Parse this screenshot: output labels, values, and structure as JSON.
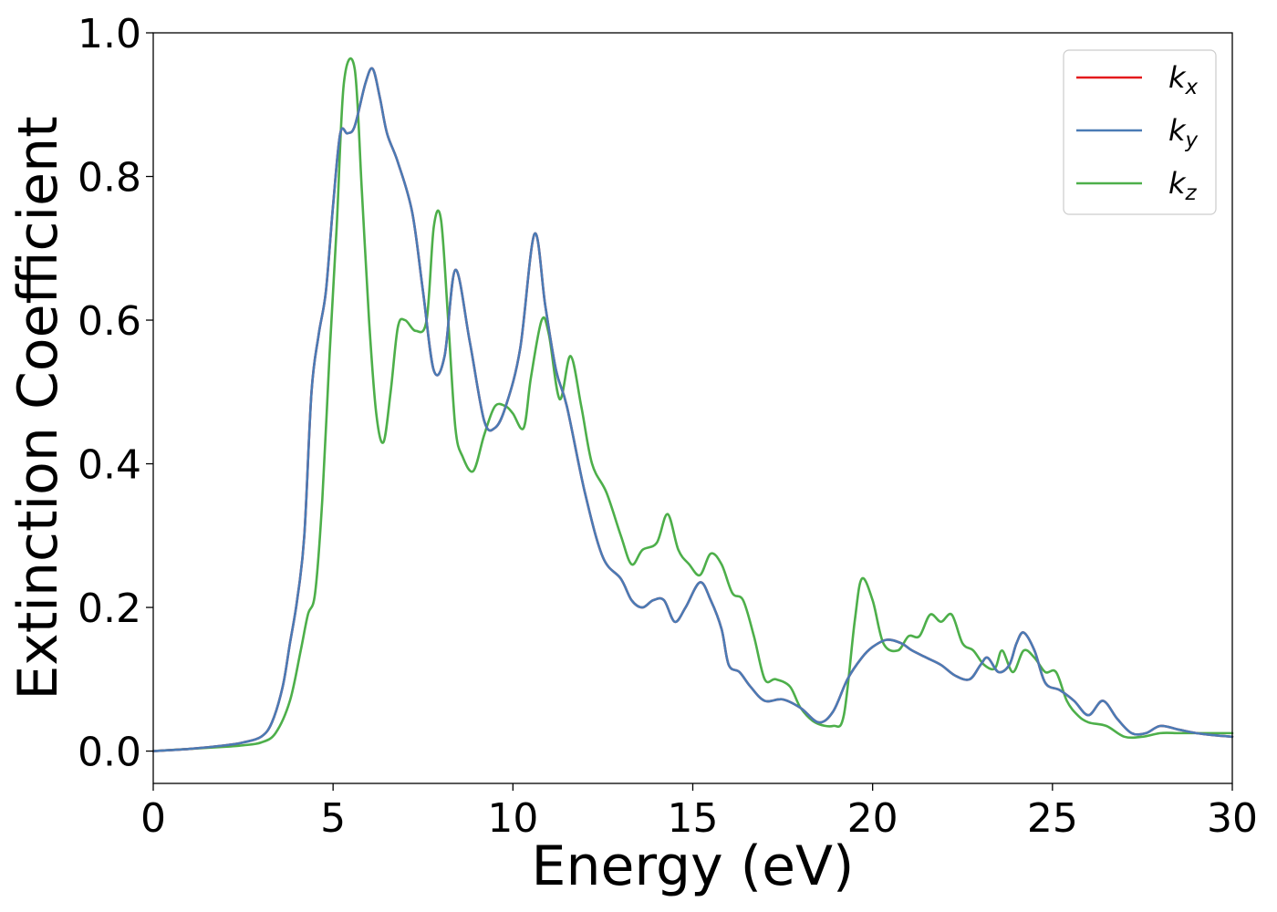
{
  "chart_data": {
    "type": "line",
    "title": "",
    "xlabel": "Energy (eV)",
    "ylabel": "Extinction Coefficient",
    "xlim": [
      0,
      30
    ],
    "ylim": [
      -0.045,
      1.0
    ],
    "x_ticks": [
      0,
      5,
      10,
      15,
      20,
      25,
      30
    ],
    "x_tick_labels": [
      "0",
      "5",
      "10",
      "15",
      "20",
      "25",
      "30"
    ],
    "y_ticks": [
      0.0,
      0.2,
      0.4,
      0.6,
      0.8,
      1.0
    ],
    "y_tick_labels": [
      "0.0",
      "0.2",
      "0.4",
      "0.6",
      "0.8",
      "1.0"
    ],
    "grid": false,
    "legend_position": "top-right",
    "series": [
      {
        "name": "k",
        "subscript": "x",
        "color": "#e41a1c",
        "x": [
          0,
          1,
          2,
          2.5,
          3,
          3.3,
          3.6,
          3.8,
          4.0,
          4.2,
          4.4,
          4.6,
          4.8,
          5.0,
          5.2,
          5.4,
          5.6,
          5.9,
          6.1,
          6.3,
          6.5,
          6.8,
          7.2,
          7.5,
          7.8,
          8.1,
          8.4,
          8.8,
          9.2,
          9.5,
          9.8,
          10.2,
          10.6,
          10.9,
          11.2,
          11.5,
          12.0,
          12.5,
          13.0,
          13.3,
          13.6,
          13.9,
          14.2,
          14.5,
          14.8,
          15.2,
          15.5,
          15.8,
          16.0,
          16.3,
          16.6,
          17.0,
          17.5,
          18.0,
          18.5,
          18.9,
          19.3,
          19.7,
          20.0,
          20.4,
          20.8,
          21.1,
          21.5,
          21.9,
          22.3,
          22.7,
          23.0,
          23.2,
          23.5,
          23.8,
          24.0,
          24.2,
          24.5,
          24.8,
          25.2,
          25.6,
          26.0,
          26.4,
          26.8,
          27.2,
          27.6,
          28.0,
          28.5,
          29.0,
          29.5,
          30.0
        ],
        "values": [
          0.0,
          0.003,
          0.008,
          0.012,
          0.02,
          0.04,
          0.09,
          0.15,
          0.21,
          0.3,
          0.5,
          0.58,
          0.64,
          0.76,
          0.86,
          0.86,
          0.87,
          0.93,
          0.95,
          0.91,
          0.86,
          0.82,
          0.75,
          0.64,
          0.53,
          0.55,
          0.67,
          0.57,
          0.46,
          0.45,
          0.48,
          0.56,
          0.72,
          0.62,
          0.53,
          0.48,
          0.36,
          0.27,
          0.24,
          0.21,
          0.2,
          0.21,
          0.21,
          0.18,
          0.2,
          0.235,
          0.21,
          0.17,
          0.12,
          0.11,
          0.09,
          0.07,
          0.072,
          0.06,
          0.04,
          0.055,
          0.1,
          0.13,
          0.145,
          0.155,
          0.15,
          0.14,
          0.13,
          0.12,
          0.105,
          0.1,
          0.12,
          0.13,
          0.11,
          0.12,
          0.15,
          0.165,
          0.14,
          0.095,
          0.085,
          0.07,
          0.05,
          0.07,
          0.045,
          0.025,
          0.025,
          0.035,
          0.03,
          0.025,
          0.022,
          0.02
        ]
      },
      {
        "name": "k",
        "subscript": "y",
        "color": "#4a7bb5",
        "x": [
          0,
          1,
          2,
          2.5,
          3,
          3.3,
          3.6,
          3.8,
          4.0,
          4.2,
          4.4,
          4.6,
          4.8,
          5.0,
          5.2,
          5.4,
          5.6,
          5.9,
          6.1,
          6.3,
          6.5,
          6.8,
          7.2,
          7.5,
          7.8,
          8.1,
          8.4,
          8.8,
          9.2,
          9.5,
          9.8,
          10.2,
          10.6,
          10.9,
          11.2,
          11.5,
          12.0,
          12.5,
          13.0,
          13.3,
          13.6,
          13.9,
          14.2,
          14.5,
          14.8,
          15.2,
          15.5,
          15.8,
          16.0,
          16.3,
          16.6,
          17.0,
          17.5,
          18.0,
          18.5,
          18.9,
          19.3,
          19.7,
          20.0,
          20.4,
          20.8,
          21.1,
          21.5,
          21.9,
          22.3,
          22.7,
          23.0,
          23.2,
          23.5,
          23.8,
          24.0,
          24.2,
          24.5,
          24.8,
          25.2,
          25.6,
          26.0,
          26.4,
          26.8,
          27.2,
          27.6,
          28.0,
          28.5,
          29.0,
          29.5,
          30.0
        ],
        "values": [
          0.0,
          0.003,
          0.008,
          0.012,
          0.02,
          0.04,
          0.09,
          0.15,
          0.21,
          0.3,
          0.5,
          0.58,
          0.64,
          0.76,
          0.86,
          0.86,
          0.87,
          0.93,
          0.95,
          0.91,
          0.86,
          0.82,
          0.75,
          0.64,
          0.53,
          0.55,
          0.67,
          0.57,
          0.46,
          0.45,
          0.48,
          0.56,
          0.72,
          0.62,
          0.53,
          0.48,
          0.36,
          0.27,
          0.24,
          0.21,
          0.2,
          0.21,
          0.21,
          0.18,
          0.2,
          0.235,
          0.21,
          0.17,
          0.12,
          0.11,
          0.09,
          0.07,
          0.072,
          0.06,
          0.04,
          0.055,
          0.1,
          0.13,
          0.145,
          0.155,
          0.15,
          0.14,
          0.13,
          0.12,
          0.105,
          0.1,
          0.12,
          0.13,
          0.11,
          0.12,
          0.15,
          0.165,
          0.14,
          0.095,
          0.085,
          0.07,
          0.05,
          0.07,
          0.045,
          0.025,
          0.025,
          0.035,
          0.03,
          0.025,
          0.022,
          0.02
        ]
      },
      {
        "name": "k",
        "subscript": "z",
        "color": "#4daf4a",
        "x": [
          0,
          1,
          2,
          2.5,
          3,
          3.4,
          3.8,
          4.1,
          4.3,
          4.5,
          4.7,
          4.9,
          5.1,
          5.3,
          5.6,
          5.8,
          6.0,
          6.2,
          6.4,
          6.6,
          6.8,
          7.0,
          7.3,
          7.6,
          7.8,
          8.0,
          8.2,
          8.4,
          8.6,
          8.9,
          9.2,
          9.5,
          9.8,
          10.0,
          10.3,
          10.5,
          10.8,
          11.0,
          11.3,
          11.6,
          11.9,
          12.2,
          12.6,
          13.0,
          13.3,
          13.6,
          14.0,
          14.3,
          14.6,
          14.9,
          15.2,
          15.5,
          15.8,
          16.1,
          16.4,
          16.7,
          17.0,
          17.3,
          17.7,
          18.0,
          18.4,
          18.9,
          19.2,
          19.5,
          19.7,
          20.0,
          20.3,
          20.7,
          21.0,
          21.3,
          21.6,
          21.9,
          22.2,
          22.5,
          22.8,
          23.1,
          23.4,
          23.6,
          23.9,
          24.2,
          24.5,
          24.8,
          25.1,
          25.4,
          25.7,
          26.0,
          26.5,
          27.0,
          27.5,
          28.0,
          28.5,
          29.0,
          29.5,
          30.0
        ],
        "values": [
          0.0,
          0.003,
          0.006,
          0.008,
          0.012,
          0.025,
          0.07,
          0.14,
          0.19,
          0.22,
          0.35,
          0.55,
          0.73,
          0.93,
          0.95,
          0.78,
          0.6,
          0.47,
          0.43,
          0.5,
          0.59,
          0.6,
          0.585,
          0.6,
          0.73,
          0.74,
          0.6,
          0.45,
          0.41,
          0.39,
          0.44,
          0.48,
          0.48,
          0.47,
          0.45,
          0.52,
          0.6,
          0.58,
          0.49,
          0.55,
          0.48,
          0.4,
          0.36,
          0.3,
          0.26,
          0.28,
          0.29,
          0.33,
          0.28,
          0.26,
          0.245,
          0.275,
          0.26,
          0.22,
          0.21,
          0.16,
          0.1,
          0.1,
          0.09,
          0.06,
          0.04,
          0.035,
          0.05,
          0.18,
          0.24,
          0.21,
          0.15,
          0.14,
          0.16,
          0.16,
          0.19,
          0.18,
          0.19,
          0.15,
          0.14,
          0.12,
          0.115,
          0.14,
          0.11,
          0.14,
          0.13,
          0.11,
          0.11,
          0.07,
          0.05,
          0.04,
          0.035,
          0.02,
          0.02,
          0.025,
          0.025,
          0.025,
          0.025,
          0.025
        ]
      }
    ]
  }
}
